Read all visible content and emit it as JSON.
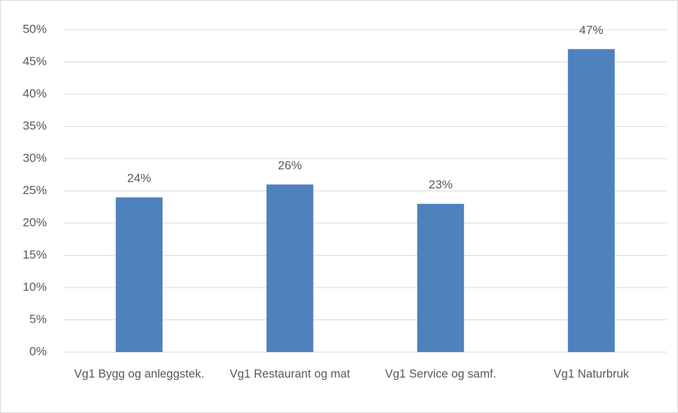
{
  "chart_data": {
    "type": "bar",
    "categories": [
      "Vg1 Bygg og anleggstek.",
      "Vg1 Restaurant og mat",
      "Vg1 Service og samf.",
      "Vg1 Naturbruk"
    ],
    "values": [
      24,
      26,
      23,
      47
    ],
    "value_labels": [
      "24%",
      "26%",
      "23%",
      "47%"
    ],
    "color": "#4f81bd",
    "ylim": [
      0,
      50
    ],
    "yticks": [
      {
        "value": 0,
        "label": "0%"
      },
      {
        "value": 5,
        "label": "5%"
      },
      {
        "value": 10,
        "label": "10%"
      },
      {
        "value": 15,
        "label": "15%"
      },
      {
        "value": 20,
        "label": "20%"
      },
      {
        "value": 25,
        "label": "25%"
      },
      {
        "value": 30,
        "label": "30%"
      },
      {
        "value": 35,
        "label": "35%"
      },
      {
        "value": 40,
        "label": "40%"
      },
      {
        "value": 45,
        "label": "45%"
      },
      {
        "value": 50,
        "label": "50%"
      }
    ],
    "grid": true
  }
}
